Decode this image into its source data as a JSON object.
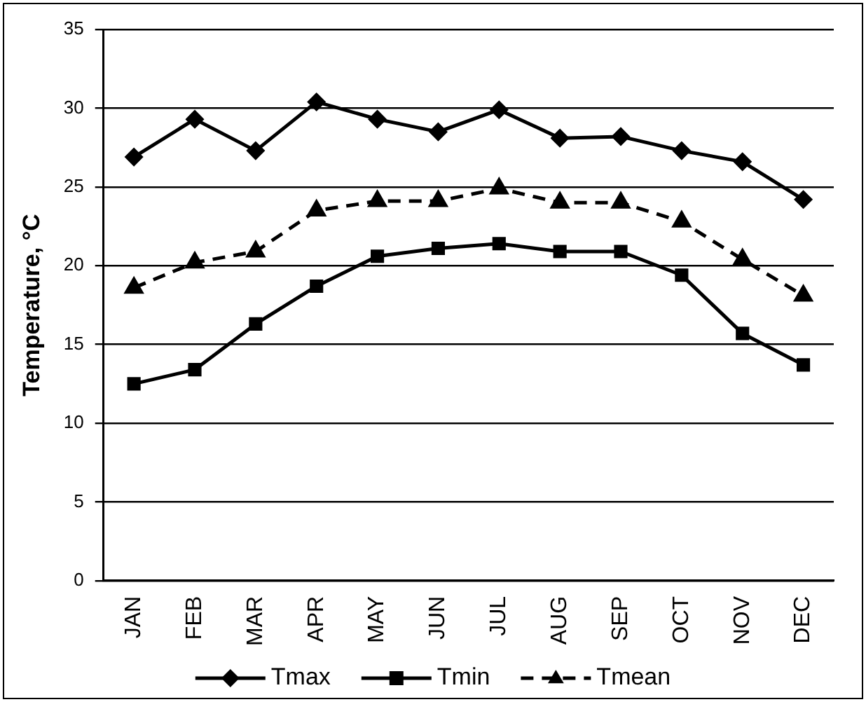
{
  "chart_data": {
    "type": "line",
    "ylabel": "Temperature, °C",
    "categories": [
      "JAN",
      "FEB",
      "MAR",
      "APR",
      "MAY",
      "JUN",
      "JUL",
      "AUG",
      "SEP",
      "OCT",
      "NOV",
      "DEC"
    ],
    "series": [
      {
        "name": "Tmax",
        "color": "#000000",
        "marker": "diamond",
        "line_style": "solid",
        "values": [
          26.9,
          29.3,
          27.3,
          30.4,
          29.3,
          28.5,
          29.9,
          28.1,
          28.2,
          27.3,
          26.6,
          24.2
        ]
      },
      {
        "name": "Tmin",
        "color": "#000000",
        "marker": "square",
        "line_style": "solid",
        "values": [
          12.5,
          13.4,
          16.3,
          18.7,
          20.6,
          21.1,
          21.4,
          20.9,
          20.9,
          19.4,
          15.7,
          13.7
        ]
      },
      {
        "name": "Tmean",
        "color": "#000000",
        "marker": "triangle",
        "line_style": "dashed",
        "values": [
          18.6,
          20.2,
          20.9,
          23.5,
          24.1,
          24.1,
          24.9,
          24.0,
          24.0,
          22.8,
          20.4,
          18.1
        ]
      }
    ],
    "ylim": [
      0,
      35
    ],
    "yticks": [
      0,
      5,
      10,
      15,
      20,
      25,
      30,
      35
    ],
    "grid": "y",
    "legend": "bottom"
  }
}
